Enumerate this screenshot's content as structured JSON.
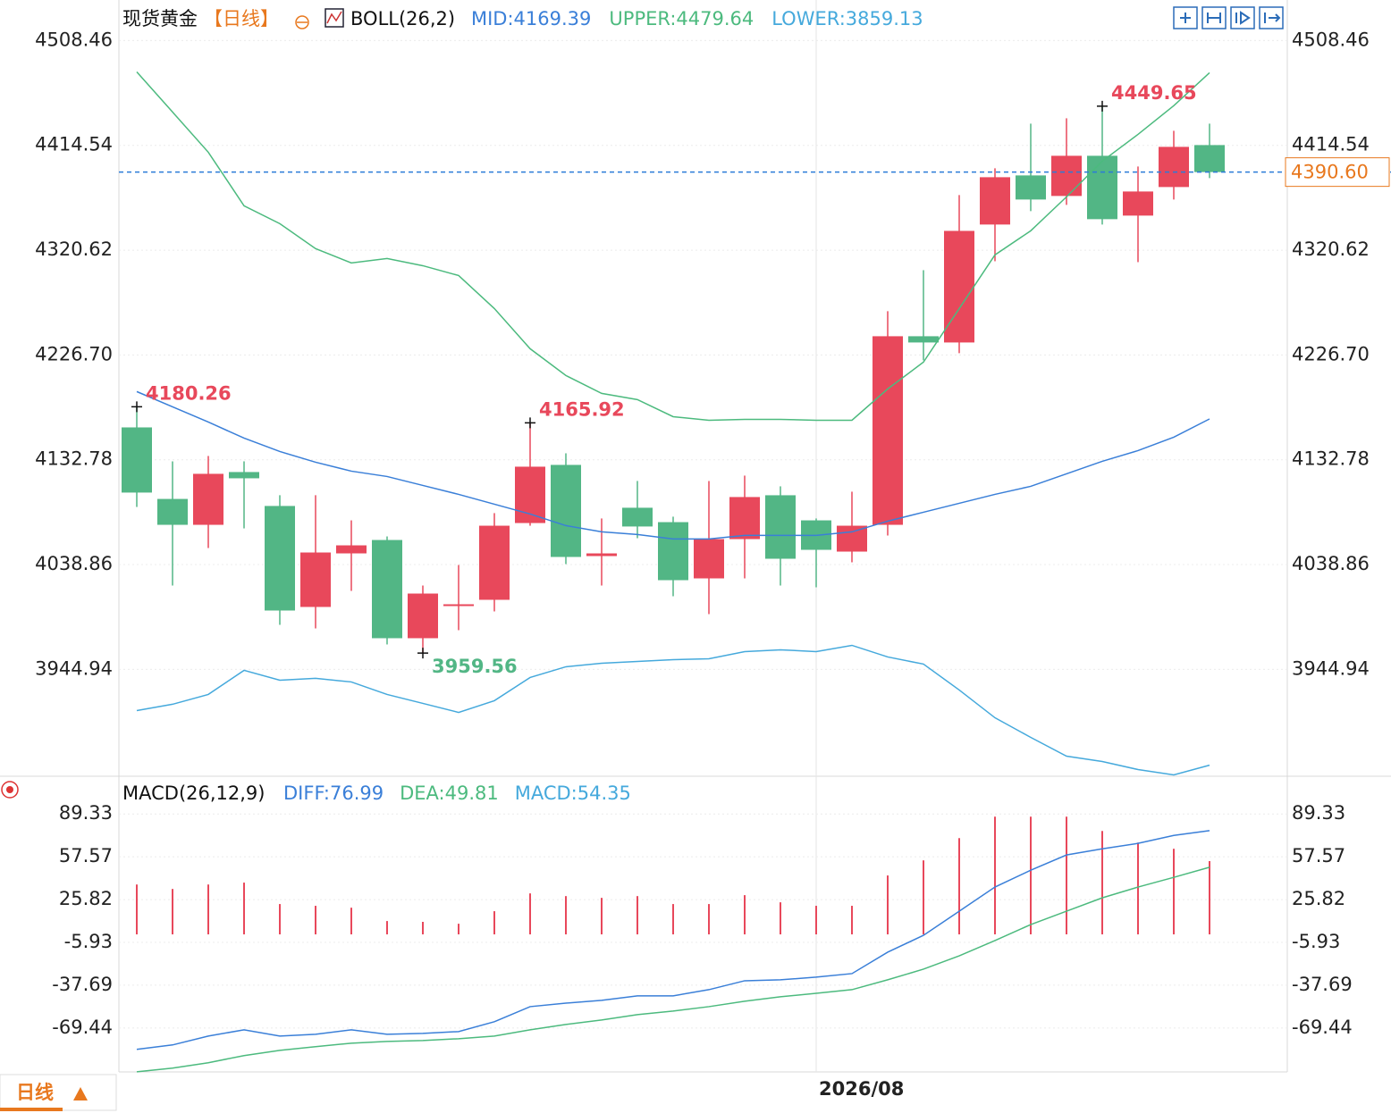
{
  "chart_data": [
    {
      "type": "candlestick",
      "title": "现货黄金",
      "period": "【日线】",
      "indicator": "BOLL(26,2)",
      "categories": [
        null,
        null,
        null,
        null,
        null,
        null,
        null,
        null,
        null,
        null,
        null,
        null,
        null,
        null,
        null,
        null,
        null,
        null,
        null,
        "2026/08",
        null,
        null,
        null,
        null,
        null,
        null,
        null,
        null,
        null,
        null,
        null
      ],
      "open": [
        4161.8,
        4097.7,
        4074.5,
        4121.8,
        4091.4,
        4000.9,
        4048.9,
        4060.9,
        3972.9,
        4002.5,
        4007.3,
        4076.1,
        4128.2,
        4046.5,
        4089.8,
        4076.9,
        4026.5,
        4061.7,
        4101.0,
        4078.5,
        4050.5,
        4074.5,
        4243.5,
        4237.9,
        4343.6,
        4387.6,
        4369.2,
        4405.2,
        4351.6,
        4377.2,
        4414.8
      ],
      "high": [
        4180.26,
        4131.4,
        4136.2,
        4131.4,
        4101.0,
        4101.0,
        4078.5,
        4064.1,
        4020.1,
        4038.5,
        4085.0,
        4165.92,
        4138.6,
        4080.2,
        4113.8,
        4081.8,
        4113.8,
        4118.6,
        4109.0,
        4080.2,
        4104.2,
        4265.9,
        4302.7,
        4370.0,
        4394.0,
        4434.0,
        4438.8,
        4449.65,
        4395.6,
        4427.6,
        4434.0
      ],
      "low": [
        4090.5,
        4020.1,
        4053.7,
        4071.3,
        3984.9,
        3981.7,
        4015.3,
        3967.3,
        3959.56,
        3980.1,
        3996.9,
        4073.7,
        4039.3,
        4020.1,
        4062.5,
        4010.5,
        3994.5,
        4026.5,
        4020.1,
        4018.5,
        4040.9,
        4064.9,
        4221.9,
        4228.3,
        4310.7,
        4355.6,
        4361.2,
        4343.6,
        4309.9,
        4366.0,
        4385.2
      ],
      "close": [
        4103.4,
        4074.5,
        4120.2,
        4116.2,
        3997.7,
        4049.7,
        4056.1,
        3972.9,
        4012.9,
        4003.3,
        4073.7,
        4126.6,
        4045.7,
        4048.9,
        4073.0,
        4024.9,
        4061.7,
        4099.4,
        4044.1,
        4052.1,
        4073.7,
        4243.5,
        4237.9,
        4337.9,
        4386.0,
        4366.0,
        4405.2,
        4348.4,
        4373.2,
        4413.2,
        4390.6
      ],
      "high_labels": [
        "4180.26",
        null,
        null,
        null,
        null,
        null,
        null,
        null,
        null,
        null,
        null,
        "4165.92",
        null,
        null,
        null,
        null,
        null,
        null,
        null,
        null,
        null,
        null,
        null,
        null,
        null,
        null,
        null,
        "4449.65",
        null,
        null,
        null
      ],
      "low_labels": [
        null,
        null,
        null,
        null,
        null,
        null,
        null,
        null,
        "3959.56",
        null,
        null,
        null,
        null,
        null,
        null,
        null,
        null,
        null,
        null,
        null,
        null,
        null,
        null,
        null,
        null,
        null,
        null,
        null,
        null,
        null,
        null
      ],
      "up_color": "#e8485b",
      "down_color": "#52b685",
      "series": [
        {
          "name": "MID:4169.39",
          "color": "#3a7fd8",
          "values": [
            4193.9,
            4180.2,
            4166.6,
            4152.2,
            4140.2,
            4130.6,
            4122.6,
            4117.8,
            4109.8,
            4101.8,
            4093.0,
            4084.2,
            4073.8,
            4068.2,
            4065.8,
            4061.8,
            4061.8,
            4065.0,
            4065.0,
            4065.0,
            4068.2,
            4077.8,
            4085.8,
            4093.8,
            4101.8,
            4109.0,
            4120.2,
            4131.4,
            4141.0,
            4153.0,
            4169.39
          ]
        },
        {
          "name": "UPPER:4479.64",
          "color": "#4cba7e",
          "values": [
            4480.4,
            4444.4,
            4408.4,
            4360.4,
            4344.4,
            4322.0,
            4309.2,
            4313.2,
            4306.7,
            4297.9,
            4268.3,
            4232.3,
            4208.3,
            4192.3,
            4186.7,
            4171.4,
            4168.2,
            4169.0,
            4169.0,
            4168.2,
            4168.2,
            4196.3,
            4220.3,
            4268.3,
            4316.4,
            4338.0,
            4368.4,
            4400.4,
            4424.4,
            4450.1,
            4479.64
          ]
        },
        {
          "name": "LOWER:3859.13",
          "color": "#45a9dc",
          "values": [
            3908.0,
            3913.7,
            3922.5,
            3944.1,
            3935.3,
            3936.9,
            3933.7,
            3922.5,
            3914.5,
            3906.4,
            3916.9,
            3937.7,
            3947.3,
            3950.5,
            3952.1,
            3953.7,
            3954.5,
            3960.9,
            3962.5,
            3960.9,
            3966.5,
            3956.1,
            3949.7,
            3926.5,
            3901.6,
            3884.0,
            3867.2,
            3862.4,
            3855.2,
            3850.4,
            3859.13
          ]
        }
      ],
      "last_price": {
        "value": 4390.6,
        "label": "4390.60"
      },
      "ylim": [
        3850,
        4540
      ],
      "yticks": [
        4508.46,
        4414.54,
        4320.62,
        {
          "value": 4226.7,
          "label": "4226.70"
        },
        4132.78,
        4038.86,
        3944.94
      ],
      "grid": true
    },
    {
      "type": "macd",
      "title": "MACD(26,12,9)",
      "series": [
        {
          "name": "DIFF:76.99",
          "color": "#3a7fd8",
          "kind": "line",
          "values": [
            -85.3,
            -82.0,
            -75.4,
            -70.8,
            -75.4,
            -74.1,
            -70.8,
            -74.1,
            -73.4,
            -72.1,
            -64.8,
            -53.6,
            -51.0,
            -48.9,
            -45.6,
            -45.6,
            -41.0,
            -34.4,
            -33.7,
            -31.7,
            -29.1,
            -13.2,
            -0.7,
            17.2,
            35.1,
            47.6,
            58.9,
            63.5,
            67.5,
            73.4,
            76.99
          ]
        },
        {
          "name": "DEA:49.81",
          "color": "#4cba7e",
          "kind": "line",
          "values": [
            -101.9,
            -99.2,
            -95.2,
            -89.9,
            -86.0,
            -83.3,
            -80.7,
            -79.4,
            -78.7,
            -77.4,
            -75.4,
            -70.8,
            -66.8,
            -63.5,
            -59.5,
            -56.9,
            -53.6,
            -49.6,
            -46.3,
            -43.7,
            -41.0,
            -33.7,
            -25.8,
            -15.9,
            -4.6,
            7.3,
            17.2,
            27.1,
            35.1,
            42.3,
            49.81
          ]
        },
        {
          "name": "MACD:54.35",
          "color": "#45a9dc",
          "kind": "histogram",
          "up_color": "#e8485b",
          "down_color": "#52b685",
          "values": [
            37.0,
            33.7,
            37.0,
            38.4,
            22.5,
            21.2,
            19.8,
            9.9,
            9.3,
            7.9,
            17.2,
            30.4,
            28.4,
            27.1,
            28.4,
            22.5,
            22.5,
            29.1,
            23.8,
            21.2,
            21.2,
            43.7,
            54.9,
            71.4,
            87.3,
            87.3,
            87.3,
            76.7,
            68.1,
            63.5,
            54.35
          ]
        }
      ],
      "ylim": [
        -104,
        112
      ],
      "yticks": [
        89.33,
        57.57,
        25.82,
        -5.93,
        -37.69,
        -69.44
      ],
      "grid": true
    }
  ],
  "period_tab": "日线"
}
